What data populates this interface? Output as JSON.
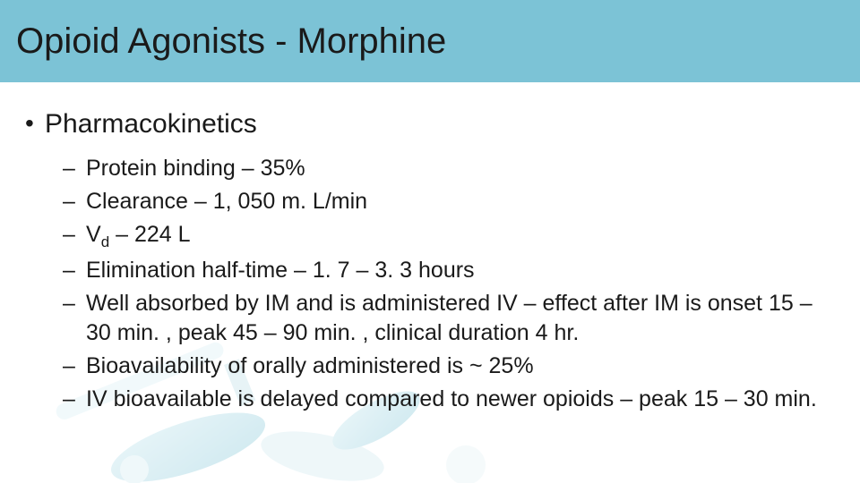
{
  "colors": {
    "header_bg": "#7cc3d6",
    "text": "#1a1a1a",
    "body_bg": "#ffffff",
    "decoration_tint": "#9fd2de"
  },
  "typography": {
    "title_fontsize": 40,
    "level1_fontsize": 30,
    "level2_fontsize": 25,
    "font_family": "Arial"
  },
  "slide": {
    "title": "Opioid Agonists - Morphine",
    "section_heading": "Pharmacokinetics",
    "items": [
      {
        "text": "Protein binding – 35%"
      },
      {
        "text": "Clearance – 1, 050 m. L/min"
      },
      {
        "text_html": "V<sub>d</sub> – 224 L",
        "text": "Vd – 224 L"
      },
      {
        "text": "Elimination half-time – 1. 7 – 3. 3 hours"
      },
      {
        "text": "Well absorbed by IM and is administered IV – effect after IM is onset 15 – 30 min. , peak 45 – 90 min. , clinical duration 4 hr."
      },
      {
        "text": "Bioavailability of orally administered is ~ 25%"
      },
      {
        "text": "IV bioavailable is delayed compared to newer opioids – peak 15 – 30 min."
      }
    ]
  }
}
